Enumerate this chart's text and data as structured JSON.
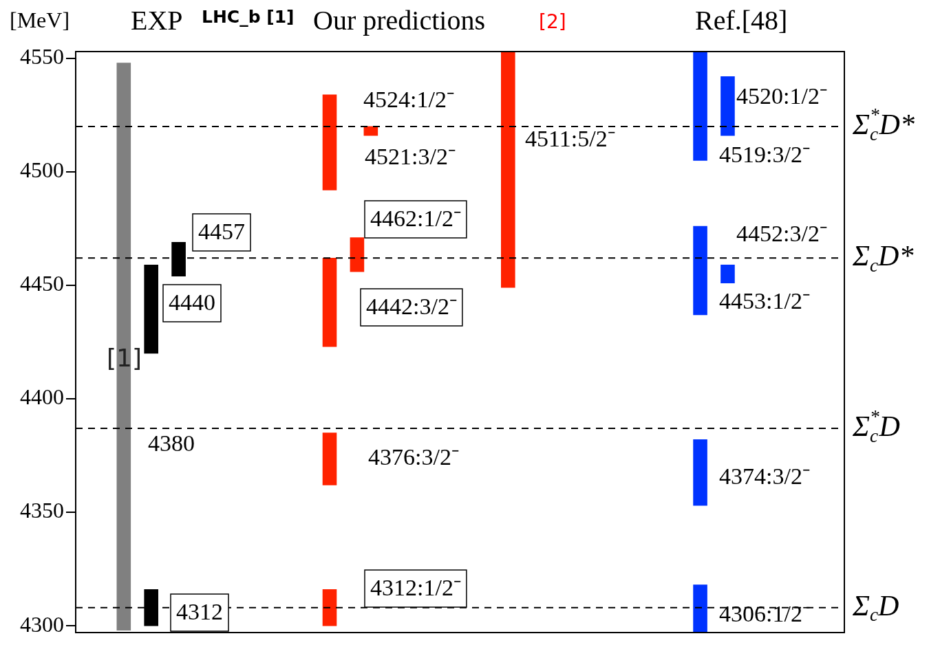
{
  "chart_data": {
    "type": "bar",
    "ylabel": "[MeV]",
    "categories": [
      null,
      null,
      null,
      null,
      null,
      null,
      null,
      null,
      null,
      null,
      null,
      null,
      null,
      null,
      null,
      null,
      null,
      null,
      null,
      null,
      null,
      null,
      null,
      null,
      null,
      null,
      null,
      null,
      null,
      null,
      null,
      null,
      null,
      null,
      null,
      null,
      null,
      null,
      null,
      null,
      null,
      null,
      null,
      null,
      null,
      null,
      null,
      null,
      null,
      null,
      null,
      null,
      null,
      null,
      null,
      null
    ],
    "ylim": [
      4297,
      4553
    ],
    "yticks": [
      4300,
      4350,
      4400,
      4450,
      4500,
      4550
    ],
    "legend": false,
    "series": [
      {
        "values": [
          null,
          null,
          null,
          250,
          null,
          39,
          null,
          15,
          null,
          null,
          null,
          null,
          null,
          null,
          null,
          null,
          null,
          null,
          42,
          null,
          15,
          4,
          null,
          null,
          null,
          null,
          null,
          null,
          null,
          null,
          null,
          104,
          null,
          null,
          null,
          null,
          null,
          null,
          null,
          null,
          null,
          null,
          null,
          null,
          null,
          48,
          null,
          26,
          null,
          null,
          null,
          null,
          null,
          null,
          null,
          null
        ],
        "base": [
          null,
          null,
          null,
          4298,
          null,
          4420,
          null,
          4454,
          null,
          null,
          null,
          null,
          null,
          null,
          null,
          null,
          null,
          null,
          4492,
          null,
          4456,
          4516,
          null,
          null,
          null,
          null,
          null,
          null,
          null,
          null,
          null,
          4449,
          null,
          null,
          null,
          null,
          null,
          null,
          null,
          null,
          null,
          null,
          null,
          null,
          null,
          4505,
          null,
          4516,
          null,
          null,
          null,
          null,
          null,
          null,
          null,
          null
        ],
        "colors": [
          null,
          null,
          null,
          "#808080",
          null,
          "#000000",
          null,
          "#000000",
          null,
          null,
          null,
          null,
          null,
          null,
          null,
          null,
          null,
          null,
          "#ff2200",
          null,
          "#ff2200",
          "#ff2200",
          null,
          null,
          null,
          null,
          null,
          null,
          null,
          null,
          null,
          "#ff2200",
          null,
          null,
          null,
          null,
          null,
          null,
          null,
          null,
          null,
          null,
          null,
          null,
          null,
          "#0033ff",
          null,
          "#0033ff",
          null,
          null,
          null,
          null,
          null,
          null,
          null,
          null
        ]
      },
      {
        "values": [
          null,
          null,
          null,
          null,
          null,
          16,
          null,
          null,
          null,
          null,
          null,
          null,
          null,
          null,
          null,
          null,
          null,
          null,
          39,
          null,
          null,
          null,
          null,
          null,
          null,
          null,
          null,
          null,
          null,
          null,
          null,
          null,
          null,
          null,
          null,
          null,
          null,
          null,
          null,
          null,
          null,
          null,
          null,
          null,
          null,
          39,
          null,
          8,
          null,
          null,
          null,
          null,
          null,
          null,
          null,
          null
        ],
        "base": [
          null,
          null,
          null,
          null,
          null,
          4300,
          null,
          null,
          null,
          null,
          null,
          null,
          null,
          null,
          null,
          null,
          null,
          null,
          4423,
          null,
          null,
          null,
          null,
          null,
          null,
          null,
          null,
          null,
          null,
          null,
          null,
          null,
          null,
          null,
          null,
          null,
          null,
          null,
          null,
          null,
          null,
          null,
          null,
          null,
          null,
          4437,
          null,
          4451,
          null,
          null,
          null,
          null,
          null,
          null,
          null,
          null
        ],
        "colors": [
          null,
          null,
          null,
          null,
          null,
          "#000000",
          null,
          null,
          null,
          null,
          null,
          null,
          null,
          null,
          null,
          null,
          null,
          null,
          "#ff2200",
          null,
          null,
          null,
          null,
          null,
          null,
          null,
          null,
          null,
          null,
          null,
          null,
          null,
          null,
          null,
          null,
          null,
          null,
          null,
          null,
          null,
          null,
          null,
          null,
          null,
          null,
          "#0033ff",
          null,
          "#0033ff",
          null,
          null,
          null,
          null,
          null,
          null,
          null,
          null
        ]
      },
      {
        "values": [
          null,
          null,
          null,
          null,
          null,
          null,
          null,
          null,
          null,
          null,
          null,
          null,
          null,
          null,
          null,
          null,
          null,
          null,
          23,
          null,
          null,
          null,
          null,
          null,
          null,
          null,
          null,
          null,
          null,
          null,
          null,
          null,
          null,
          null,
          null,
          null,
          null,
          null,
          null,
          null,
          null,
          null,
          null,
          null,
          null,
          29,
          null,
          null,
          null,
          null,
          null,
          null,
          null,
          null,
          null,
          null
        ],
        "base": [
          null,
          null,
          null,
          null,
          null,
          null,
          null,
          null,
          null,
          null,
          null,
          null,
          null,
          null,
          null,
          null,
          null,
          null,
          4362,
          null,
          null,
          null,
          null,
          null,
          null,
          null,
          null,
          null,
          null,
          null,
          null,
          null,
          null,
          null,
          null,
          null,
          null,
          null,
          null,
          null,
          null,
          null,
          null,
          null,
          null,
          4353,
          null,
          null,
          null,
          null,
          null,
          null,
          null,
          null,
          null,
          null
        ],
        "colors": [
          null,
          null,
          null,
          null,
          null,
          null,
          null,
          null,
          null,
          null,
          null,
          null,
          null,
          null,
          null,
          null,
          null,
          null,
          "#ff2200",
          null,
          null,
          null,
          null,
          null,
          null,
          null,
          null,
          null,
          null,
          null,
          null,
          null,
          null,
          null,
          null,
          null,
          null,
          null,
          null,
          null,
          null,
          null,
          null,
          null,
          null,
          "#0033ff",
          null,
          null,
          null,
          null,
          null,
          null,
          null,
          null,
          null,
          null
        ]
      },
      {
        "values": [
          null,
          null,
          null,
          null,
          null,
          null,
          null,
          null,
          null,
          null,
          null,
          null,
          null,
          null,
          null,
          null,
          null,
          null,
          16,
          null,
          null,
          null,
          null,
          null,
          null,
          null,
          null,
          null,
          null,
          null,
          null,
          null,
          null,
          null,
          null,
          null,
          null,
          null,
          null,
          null,
          null,
          null,
          null,
          null,
          null,
          21,
          null,
          null,
          null,
          null,
          null,
          null,
          null,
          null,
          null,
          null
        ],
        "base": [
          null,
          null,
          null,
          null,
          null,
          null,
          null,
          null,
          null,
          null,
          null,
          null,
          null,
          null,
          null,
          null,
          null,
          null,
          4300,
          null,
          null,
          null,
          null,
          null,
          null,
          null,
          null,
          null,
          null,
          null,
          null,
          null,
          null,
          null,
          null,
          null,
          null,
          null,
          null,
          null,
          null,
          null,
          null,
          null,
          null,
          4297,
          null,
          null,
          null,
          null,
          null,
          null,
          null,
          null,
          null,
          null
        ],
        "colors": [
          null,
          null,
          null,
          null,
          null,
          null,
          null,
          null,
          null,
          null,
          null,
          null,
          null,
          null,
          null,
          null,
          null,
          null,
          "#ff2200",
          null,
          null,
          null,
          null,
          null,
          null,
          null,
          null,
          null,
          null,
          null,
          null,
          null,
          null,
          null,
          null,
          null,
          null,
          null,
          null,
          null,
          null,
          null,
          null,
          null,
          null,
          "#0033ff",
          null,
          null,
          null,
          null,
          null,
          null,
          null,
          null,
          null,
          null
        ]
      }
    ],
    "ref_lines": [
      {
        "axis": "y",
        "value": 4520,
        "label": "Σ$^{*}$$_{c}$D*",
        "color": "#000000",
        "line_style": "dashed"
      },
      {
        "axis": "y",
        "value": 4462,
        "label": "Σ$_{c}$D*",
        "color": "#000000",
        "line_style": "dashed"
      },
      {
        "axis": "y",
        "value": 4387,
        "label": "Σ$^{*}$$_{c}$D",
        "color": "#000000",
        "line_style": "dashed"
      },
      {
        "axis": "y",
        "value": 4308,
        "label": "Σ$_{c}$D",
        "color": "#000000",
        "line_style": "dashed"
      }
    ],
    "annotations": [
      "EXP",
      "LHC_b [1]",
      "Our predictions",
      "[2]",
      "Ref.[48]",
      "[1]",
      "4380",
      "4440",
      "4457",
      "4312",
      "4524:1/2⁻",
      "4521:3/2⁻",
      "4462:1/2⁻",
      "4442:3/2⁻",
      "4376:3/2⁻",
      "4312:1/2⁻",
      "4511:5/2⁻",
      "4520:1/2⁻",
      "4519:3/2⁻",
      "4452:3/2⁻",
      "4453:1/2⁻",
      "4374:3/2⁻",
      "4306:1/2⁻"
    ]
  }
}
